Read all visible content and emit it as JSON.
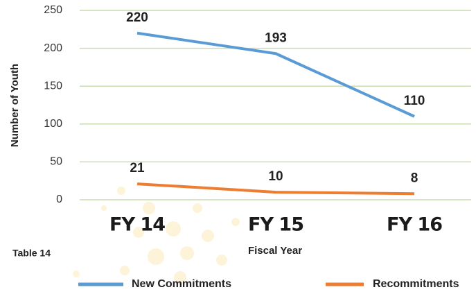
{
  "chart_data": {
    "type": "line",
    "categories": [
      "FY 14",
      "FY 15",
      "FY 16"
    ],
    "series": [
      {
        "name": "New Commitments",
        "color": "#5b9bd5",
        "values": [
          220,
          193,
          110
        ]
      },
      {
        "name": "Recommitments",
        "color": "#ed7d31",
        "values": [
          21,
          10,
          8
        ]
      }
    ],
    "ylim": [
      0,
      250
    ],
    "yticks": [
      0,
      50,
      100,
      150,
      200,
      250
    ],
    "grid": true,
    "y_label": "Number of Youth",
    "x_label": "Fiscal Year",
    "annotation": "Table 14"
  }
}
